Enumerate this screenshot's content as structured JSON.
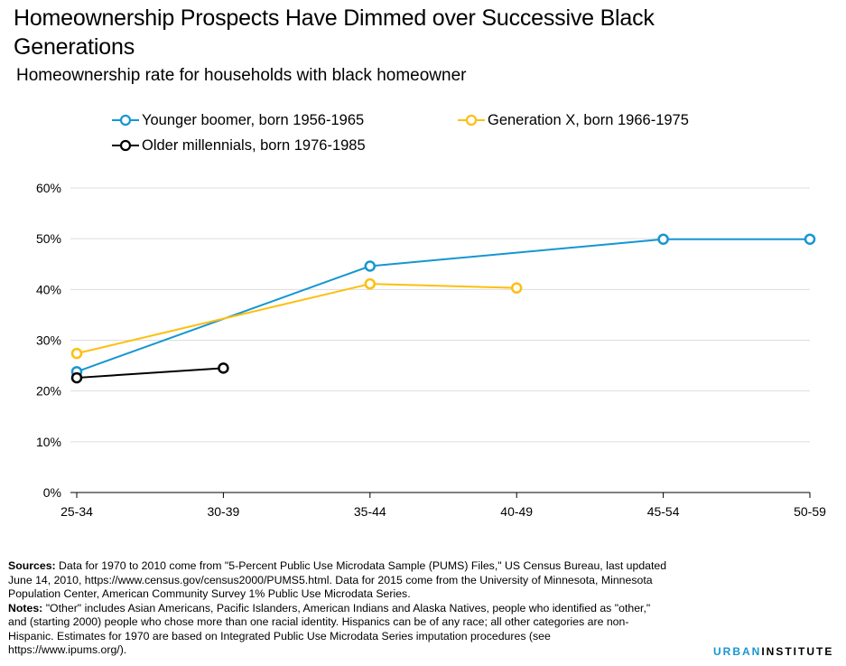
{
  "chart_data": {
    "type": "line",
    "title": "Homeownership  Prospects Have Dimmed over Successive Black Generations",
    "subtitle": "Homeownership rate for households with black homeowner",
    "categories": [
      "25-34",
      "30-39",
      "35-44",
      "40-49",
      "45-54",
      "50-59"
    ],
    "ylim": [
      0,
      60
    ],
    "yticks": [
      "0%",
      "10%",
      "20%",
      "30%",
      "40%",
      "50%",
      "60%"
    ],
    "grid": true,
    "legend_position": "top",
    "series": [
      {
        "name": "Younger boomer, born 1956-1965",
        "color": "#1696d2",
        "values": [
          23.8,
          null,
          44.6,
          null,
          49.9,
          49.9
        ]
      },
      {
        "name": "Generation X, born 1966-1975",
        "color": "#fdbf11",
        "values": [
          27.4,
          null,
          41.1,
          40.3,
          null,
          null
        ]
      },
      {
        "name": "Older millennials, born 1976-1985",
        "color": "#000000",
        "values": [
          22.6,
          24.5,
          null,
          null,
          null,
          null
        ]
      }
    ]
  },
  "notes": {
    "sources_label": "Sources:",
    "sources_text": "Data for 1970 to 2010 come from \"5-Percent Public Use Microdata Sample (PUMS) Files,\" US Census Bureau, last updated June 14, 2010, https://www.census.gov/census2000/PUMS5.html. Data for 2015 come from the University of Minnesota, Minnesota Population Center, American Community Survey 1% Public Use Microdata Series.",
    "notes_label": "Notes:",
    "notes_text": "\"Other\" includes Asian Americans, Pacific Islanders, American Indians and Alaska Natives, people who identified  as \"other,\" and (starting 2000) people who chose more than one racial identity. Hispanics can be of any race; all other categories are non-Hispanic. Estimates for 1970 are based on Integrated Public Use Microdata Series imputation procedures (see https://www.ipums.org/)."
  },
  "logo": {
    "part1": "URBAN",
    "part2": "INSTITUTE"
  }
}
